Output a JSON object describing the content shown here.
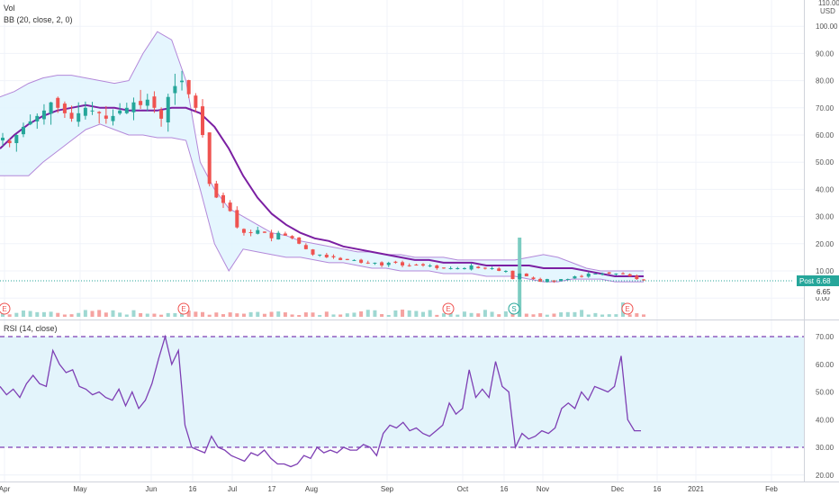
{
  "legend": {
    "vol": "Vol",
    "bb": "BB (20, close, 2, 0)",
    "rsi": "RSI (14, close)"
  },
  "price_axis": {
    "top_label": "110.00",
    "currency": "USD",
    "ticks": [
      "100.00",
      "90.00",
      "80.00",
      "70.00",
      "60.00",
      "50.00",
      "40.00",
      "30.00",
      "20.00",
      "10.00",
      "0.00"
    ]
  },
  "price_badges": {
    "post_label": "Post",
    "post_value": "6.68",
    "last_value": "6.65"
  },
  "rsi_axis": {
    "ticks": [
      "70.00",
      "60.00",
      "50.00",
      "40.00",
      "30.00",
      "20.00"
    ]
  },
  "x_axis": {
    "labels": [
      "Apr",
      "May",
      "Jun",
      "16",
      "Jul",
      "17",
      "Aug",
      "Sep",
      "Oct",
      "16",
      "Nov",
      "Dec",
      "16",
      "2021",
      "Feb"
    ]
  },
  "event_markers": [
    {
      "letter": "E"
    },
    {
      "letter": "E"
    },
    {
      "letter": "E"
    },
    {
      "letter": "S"
    },
    {
      "letter": "E"
    }
  ],
  "colors": {
    "up": "#26a69a",
    "down": "#ef5350",
    "bb_basis": "#7b1fa2",
    "bb_band": "#b388d9",
    "bb_fill": "#e1f5fe",
    "rsi_line": "#7e3fb4",
    "rsi_fill": "#e3f4fb",
    "rsi_bounds": "#7e3fb4",
    "axis_text": "#555555",
    "badge_bg": "#26a69a"
  },
  "chart_data": [
    {
      "type": "candlestick",
      "title": "",
      "ylabel": "USD",
      "ylim": [
        0,
        110
      ],
      "series": [
        {
          "name": "Price close (approx)",
          "values": [
            59,
            57,
            60,
            63,
            65,
            67,
            69,
            72,
            70,
            68,
            66,
            68,
            70,
            69,
            68,
            66,
            67,
            69,
            70,
            72,
            71,
            73,
            70,
            66,
            74,
            78,
            80,
            75,
            70,
            60,
            42,
            37,
            35,
            32,
            26,
            24,
            24,
            25,
            24,
            22,
            24,
            23,
            22,
            20,
            18,
            16,
            16,
            15,
            15,
            14,
            14,
            14,
            13,
            13,
            13,
            12,
            13,
            13,
            12,
            12,
            12,
            12,
            12,
            11,
            11,
            11,
            11,
            11,
            12,
            11,
            11,
            11,
            10,
            10,
            7,
            9,
            8,
            7,
            6,
            7,
            6,
            7,
            7,
            8,
            8,
            9,
            9,
            9,
            9,
            9,
            9,
            8,
            7,
            6.65
          ]
        },
        {
          "name": "BB basis",
          "values": [
            55,
            60,
            64,
            67,
            69,
            70,
            71,
            70,
            70,
            69,
            69,
            69,
            70,
            70,
            68,
            63,
            55,
            45,
            37,
            31,
            27,
            24,
            22,
            21,
            19,
            18,
            17,
            16,
            15,
            14,
            14,
            13,
            13,
            13,
            12,
            12,
            12,
            12,
            11,
            11,
            11,
            10,
            9,
            8,
            8,
            8
          ]
        },
        {
          "name": "BB upper",
          "values": [
            74,
            76,
            79,
            81,
            82,
            82,
            81,
            80,
            79,
            80,
            90,
            98,
            95,
            80,
            50,
            40,
            33,
            30,
            27,
            24,
            23,
            21,
            20,
            19,
            18,
            17,
            17,
            16,
            16,
            15,
            15,
            15,
            14,
            14,
            14,
            14,
            14,
            15,
            16,
            15,
            13,
            11,
            10,
            10,
            10,
            10
          ]
        },
        {
          "name": "BB lower",
          "values": [
            45,
            45,
            45,
            50,
            54,
            58,
            62,
            64,
            62,
            60,
            60,
            59,
            59,
            58,
            40,
            20,
            10,
            18,
            17,
            16,
            15,
            15,
            14,
            13,
            13,
            12,
            11,
            11,
            10,
            10,
            10,
            9,
            9,
            9,
            8,
            8,
            8,
            7,
            6,
            6,
            7,
            7,
            7,
            6,
            6,
            6
          ]
        }
      ]
    },
    {
      "type": "line",
      "title": "",
      "ylabel": "",
      "ylim": [
        20,
        70
      ],
      "bounds": [
        30,
        70
      ],
      "series": [
        {
          "name": "RSI",
          "values": [
            52,
            49,
            51,
            48,
            53,
            56,
            53,
            52,
            65,
            60,
            57,
            58,
            52,
            51,
            49,
            50,
            48,
            47,
            51,
            45,
            50,
            44,
            47,
            53,
            62,
            70,
            60,
            65,
            38,
            30,
            29,
            28,
            34,
            30,
            29,
            27,
            26,
            25,
            28,
            27,
            29,
            26,
            24,
            24,
            23,
            24,
            27,
            26,
            30,
            28,
            29,
            28,
            30,
            29,
            29,
            31,
            30,
            27,
            35,
            38,
            37,
            39,
            36,
            37,
            35,
            34,
            36,
            38,
            46,
            42,
            44,
            58,
            48,
            51,
            48,
            61,
            52,
            50,
            30,
            35,
            33,
            34,
            36,
            35,
            37,
            44,
            46,
            44,
            50,
            47,
            52,
            51,
            50,
            52,
            63,
            40,
            36,
            36
          ]
        }
      ]
    }
  ]
}
